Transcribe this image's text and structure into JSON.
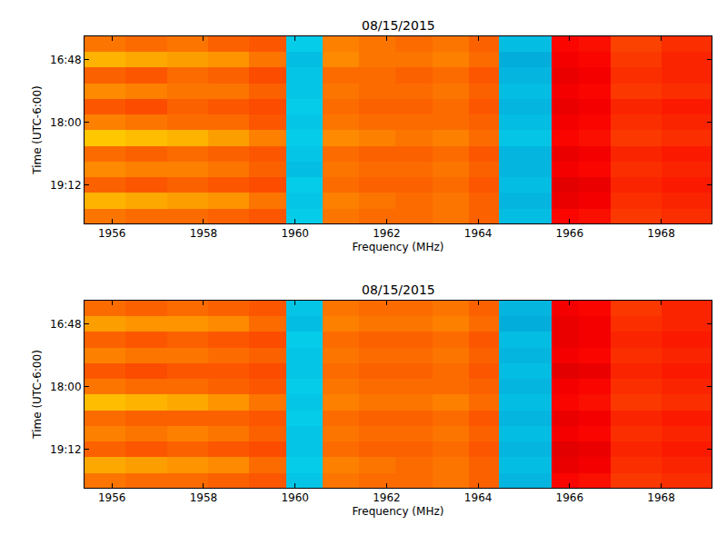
{
  "chart_data": [
    {
      "type": "heatmap",
      "title": "08/15/2015",
      "x_label": "Frequency (MHz)",
      "y_label": "Time (UTC-6:00)",
      "color": "Jet",
      "x": [
        1955.4,
        1956.3,
        1957.2,
        1958.1,
        1959.0,
        1959.8,
        1960.6,
        1961.4,
        1962.2,
        1963.0,
        1963.8,
        1964.45,
        1965.6,
        1966.2,
        1966.9,
        1968.0,
        1969.1
      ],
      "y": [
        981,
        999,
        1017,
        1035,
        1053,
        1071,
        1089,
        1107,
        1125,
        1143,
        1161,
        1179,
        1196
      ],
      "z": [
        [
          0.76,
          0.77,
          0.76,
          0.78,
          0.79,
          0.31,
          0.75,
          0.76,
          0.77,
          0.76,
          0.78,
          0.29,
          0.87,
          0.86,
          0.81,
          0.83
        ],
        [
          0.7,
          0.71,
          0.72,
          0.73,
          0.76,
          0.29,
          0.74,
          0.76,
          0.76,
          0.75,
          0.77,
          0.27,
          0.88,
          0.87,
          0.82,
          0.84
        ],
        [
          0.78,
          0.79,
          0.77,
          0.78,
          0.8,
          0.3,
          0.77,
          0.77,
          0.78,
          0.77,
          0.79,
          0.28,
          0.89,
          0.88,
          0.83,
          0.84
        ],
        [
          0.74,
          0.75,
          0.76,
          0.76,
          0.78,
          0.3,
          0.76,
          0.77,
          0.77,
          0.76,
          0.78,
          0.29,
          0.88,
          0.87,
          0.82,
          0.83
        ],
        [
          0.79,
          0.8,
          0.78,
          0.79,
          0.8,
          0.31,
          0.77,
          0.78,
          0.78,
          0.77,
          0.79,
          0.28,
          0.89,
          0.88,
          0.84,
          0.85
        ],
        [
          0.75,
          0.76,
          0.77,
          0.77,
          0.79,
          0.3,
          0.76,
          0.77,
          0.77,
          0.77,
          0.78,
          0.29,
          0.88,
          0.87,
          0.83,
          0.84
        ],
        [
          0.68,
          0.69,
          0.7,
          0.72,
          0.75,
          0.31,
          0.74,
          0.75,
          0.76,
          0.75,
          0.77,
          0.3,
          0.87,
          0.86,
          0.82,
          0.83
        ],
        [
          0.77,
          0.78,
          0.77,
          0.78,
          0.79,
          0.3,
          0.77,
          0.78,
          0.78,
          0.77,
          0.79,
          0.28,
          0.89,
          0.88,
          0.84,
          0.85
        ],
        [
          0.74,
          0.75,
          0.75,
          0.76,
          0.78,
          0.29,
          0.76,
          0.77,
          0.77,
          0.76,
          0.78,
          0.28,
          0.88,
          0.87,
          0.83,
          0.84
        ],
        [
          0.78,
          0.79,
          0.78,
          0.79,
          0.8,
          0.31,
          0.77,
          0.78,
          0.78,
          0.77,
          0.79,
          0.29,
          0.9,
          0.89,
          0.84,
          0.85
        ],
        [
          0.7,
          0.71,
          0.72,
          0.73,
          0.76,
          0.3,
          0.75,
          0.76,
          0.77,
          0.76,
          0.78,
          0.28,
          0.89,
          0.88,
          0.83,
          0.84
        ],
        [
          0.76,
          0.77,
          0.77,
          0.78,
          0.79,
          0.31,
          0.76,
          0.77,
          0.77,
          0.76,
          0.78,
          0.29,
          0.87,
          0.86,
          0.82,
          0.83
        ]
      ],
      "zlim": [
        0,
        1
      ],
      "xlim": [
        1955.4,
        1969.1
      ],
      "xticks": [
        1956,
        1958,
        1960,
        1962,
        1964,
        1966,
        1968
      ],
      "ylim": [
        981,
        1196
      ],
      "yticks": [
        {
          "value": 1008,
          "label": "16:48"
        },
        {
          "value": 1080,
          "label": "18:00"
        },
        {
          "value": 1152,
          "label": "19:12"
        }
      ]
    },
    {
      "type": "heatmap",
      "title": "08/15/2015",
      "x_label": "Frequency (MHz)",
      "y_label": "Time (UTC-6:00)",
      "color": "Jet",
      "x": [
        1955.4,
        1956.3,
        1957.2,
        1958.1,
        1959.0,
        1959.8,
        1960.6,
        1961.4,
        1962.2,
        1963.0,
        1963.8,
        1964.45,
        1965.6,
        1966.2,
        1966.9,
        1968.0,
        1969.1
      ],
      "y": [
        981,
        999,
        1017,
        1035,
        1053,
        1071,
        1089,
        1107,
        1125,
        1143,
        1161,
        1179,
        1196
      ],
      "z": [
        [
          0.77,
          0.78,
          0.77,
          0.78,
          0.79,
          0.3,
          0.76,
          0.77,
          0.77,
          0.76,
          0.78,
          0.28,
          0.88,
          0.87,
          0.82,
          0.84
        ],
        [
          0.72,
          0.73,
          0.73,
          0.74,
          0.77,
          0.29,
          0.75,
          0.76,
          0.76,
          0.75,
          0.77,
          0.27,
          0.89,
          0.88,
          0.83,
          0.84
        ],
        [
          0.78,
          0.79,
          0.78,
          0.79,
          0.8,
          0.31,
          0.77,
          0.78,
          0.78,
          0.77,
          0.79,
          0.29,
          0.89,
          0.88,
          0.84,
          0.85
        ],
        [
          0.75,
          0.76,
          0.76,
          0.77,
          0.78,
          0.3,
          0.76,
          0.77,
          0.77,
          0.76,
          0.78,
          0.28,
          0.88,
          0.87,
          0.83,
          0.84
        ],
        [
          0.79,
          0.8,
          0.79,
          0.79,
          0.8,
          0.3,
          0.77,
          0.78,
          0.78,
          0.77,
          0.79,
          0.29,
          0.9,
          0.89,
          0.84,
          0.85
        ],
        [
          0.76,
          0.77,
          0.77,
          0.78,
          0.79,
          0.31,
          0.76,
          0.77,
          0.77,
          0.77,
          0.78,
          0.28,
          0.88,
          0.87,
          0.83,
          0.84
        ],
        [
          0.69,
          0.7,
          0.71,
          0.73,
          0.76,
          0.3,
          0.75,
          0.76,
          0.76,
          0.75,
          0.77,
          0.29,
          0.87,
          0.86,
          0.82,
          0.83
        ],
        [
          0.77,
          0.78,
          0.78,
          0.78,
          0.79,
          0.31,
          0.77,
          0.78,
          0.78,
          0.77,
          0.79,
          0.28,
          0.89,
          0.88,
          0.84,
          0.85
        ],
        [
          0.75,
          0.76,
          0.75,
          0.76,
          0.78,
          0.3,
          0.76,
          0.77,
          0.77,
          0.76,
          0.78,
          0.29,
          0.88,
          0.87,
          0.83,
          0.84
        ],
        [
          0.78,
          0.79,
          0.78,
          0.79,
          0.8,
          0.3,
          0.77,
          0.78,
          0.78,
          0.77,
          0.79,
          0.28,
          0.9,
          0.89,
          0.84,
          0.85
        ],
        [
          0.71,
          0.72,
          0.73,
          0.74,
          0.77,
          0.31,
          0.75,
          0.76,
          0.77,
          0.76,
          0.78,
          0.29,
          0.89,
          0.88,
          0.83,
          0.84
        ],
        [
          0.76,
          0.77,
          0.77,
          0.78,
          0.79,
          0.3,
          0.76,
          0.77,
          0.77,
          0.76,
          0.78,
          0.28,
          0.87,
          0.86,
          0.82,
          0.83
        ]
      ],
      "zlim": [
        0,
        1
      ],
      "xlim": [
        1955.4,
        1969.1
      ],
      "xticks": [
        1956,
        1958,
        1960,
        1962,
        1964,
        1966,
        1968
      ],
      "ylim": [
        981,
        1196
      ],
      "yticks": [
        {
          "value": 1008,
          "label": "16:48"
        },
        {
          "value": 1080,
          "label": "18:00"
        },
        {
          "value": 1152,
          "label": "19:12"
        }
      ]
    }
  ]
}
